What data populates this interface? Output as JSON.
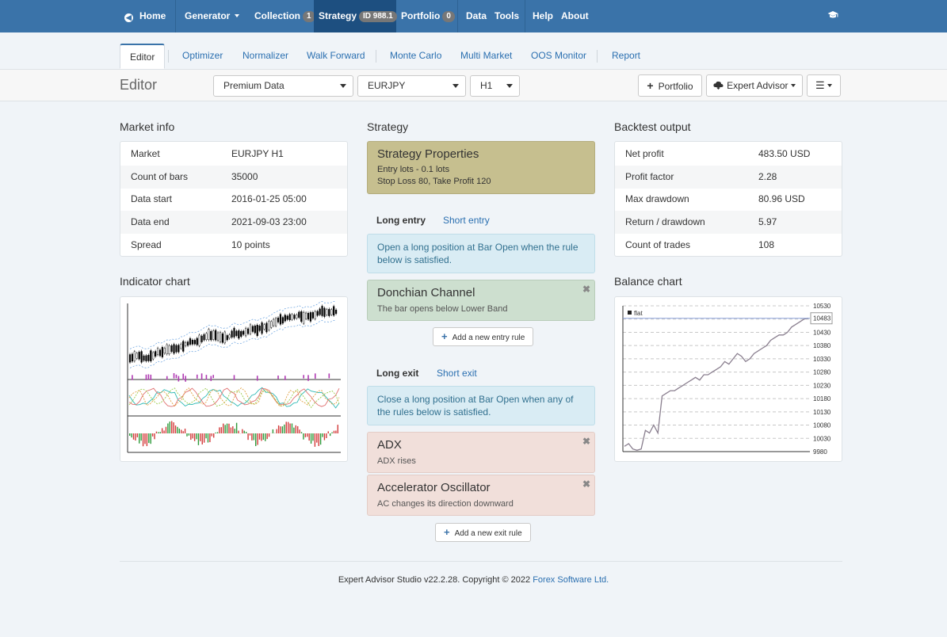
{
  "nav": {
    "home": "Home",
    "generator": "Generator",
    "collection": "Collection",
    "collection_badge": "1",
    "strategy": "Strategy",
    "strategy_badge": "ID 988.1",
    "portfolio": "Portfolio",
    "portfolio_badge": "0",
    "data": "Data",
    "tools": "Tools",
    "help": "Help",
    "about": "About",
    "active_color": "#1d4f80",
    "bar_color": "#3a73a9"
  },
  "tabs": [
    "Editor",
    "Optimizer",
    "Normalizer",
    "Walk Forward",
    "Monte Carlo",
    "Multi Market",
    "OOS Monitor",
    "Report"
  ],
  "toolbar": {
    "title": "Editor",
    "data_source": "Premium Data",
    "symbol": "EURJPY",
    "period": "H1",
    "portfolio_button": "Portfolio",
    "ea_button": "Expert Advisor"
  },
  "market_info": {
    "title": "Market info",
    "rows": [
      {
        "label": "Market",
        "value": "EURJPY H1"
      },
      {
        "label": "Count of bars",
        "value": "35000"
      },
      {
        "label": "Data start",
        "value": "2016-01-25 05:00"
      },
      {
        "label": "Data end",
        "value": "2021-09-03 23:00"
      },
      {
        "label": "Spread",
        "value": "10 points"
      }
    ]
  },
  "indicator_chart": {
    "title": "Indicator chart"
  },
  "strategy": {
    "title": "Strategy",
    "props_title": "Strategy Properties",
    "props_line1": "Entry lots - 0.1 lots",
    "props_line2": "Stop Loss 80, Take Profit 120",
    "long_entry_tab": "Long entry",
    "short_entry_tab": "Short entry",
    "entry_info": "Open a long position at Bar Open when the rule below is satisfied.",
    "entry_rules": [
      {
        "title": "Donchian Channel",
        "desc": "The bar opens below Lower Band",
        "color": "#cddfcf"
      }
    ],
    "add_entry": "Add a new entry rule",
    "long_exit_tab": "Long exit",
    "short_exit_tab": "Short exit",
    "exit_info": "Close a long position at Bar Open when any of the rules below is satisfied.",
    "exit_rules": [
      {
        "title": "ADX",
        "desc": "ADX rises",
        "color": "#f1dfda"
      },
      {
        "title": "Accelerator Oscillator",
        "desc": "AC changes its direction downward",
        "color": "#f1dfda"
      }
    ],
    "add_exit": "Add a new exit rule"
  },
  "backtest": {
    "title": "Backtest output",
    "rows": [
      {
        "label": "Net profit",
        "value": "483.50 USD"
      },
      {
        "label": "Profit factor",
        "value": "2.28"
      },
      {
        "label": "Max drawdown",
        "value": "80.96 USD"
      },
      {
        "label": "Return / drawdown",
        "value": "5.97"
      },
      {
        "label": "Count of trades",
        "value": "108"
      }
    ]
  },
  "chart_data": {
    "type": "line",
    "title": "Balance chart",
    "legend": [
      "flat"
    ],
    "y_ticks": [
      "10530",
      "10480",
      "10430",
      "10380",
      "10330",
      "10280",
      "10230",
      "10180",
      "10130",
      "10080",
      "10030",
      "9980"
    ],
    "last_value_label": "10483",
    "ylim": [
      9980,
      10530
    ],
    "series": [
      {
        "color": "#8a7f8f",
        "values": [
          10000,
          10010,
          9990,
          9985,
          9990,
          10060,
          10050,
          10080,
          10050,
          10190,
          10200,
          10210,
          10210,
          10220,
          10230,
          10240,
          10250,
          10260,
          10250,
          10270,
          10270,
          10280,
          10290,
          10300,
          10320,
          10310,
          10330,
          10350,
          10340,
          10320,
          10330,
          10350,
          10360,
          10370,
          10380,
          10400,
          10410,
          10420,
          10420,
          10430,
          10450,
          10460,
          10470,
          10480,
          10483
        ]
      }
    ]
  },
  "footer": {
    "text": "Expert Advisor Studio v22.2.28. Copyright © 2022",
    "link": "Forex Software Ltd."
  }
}
